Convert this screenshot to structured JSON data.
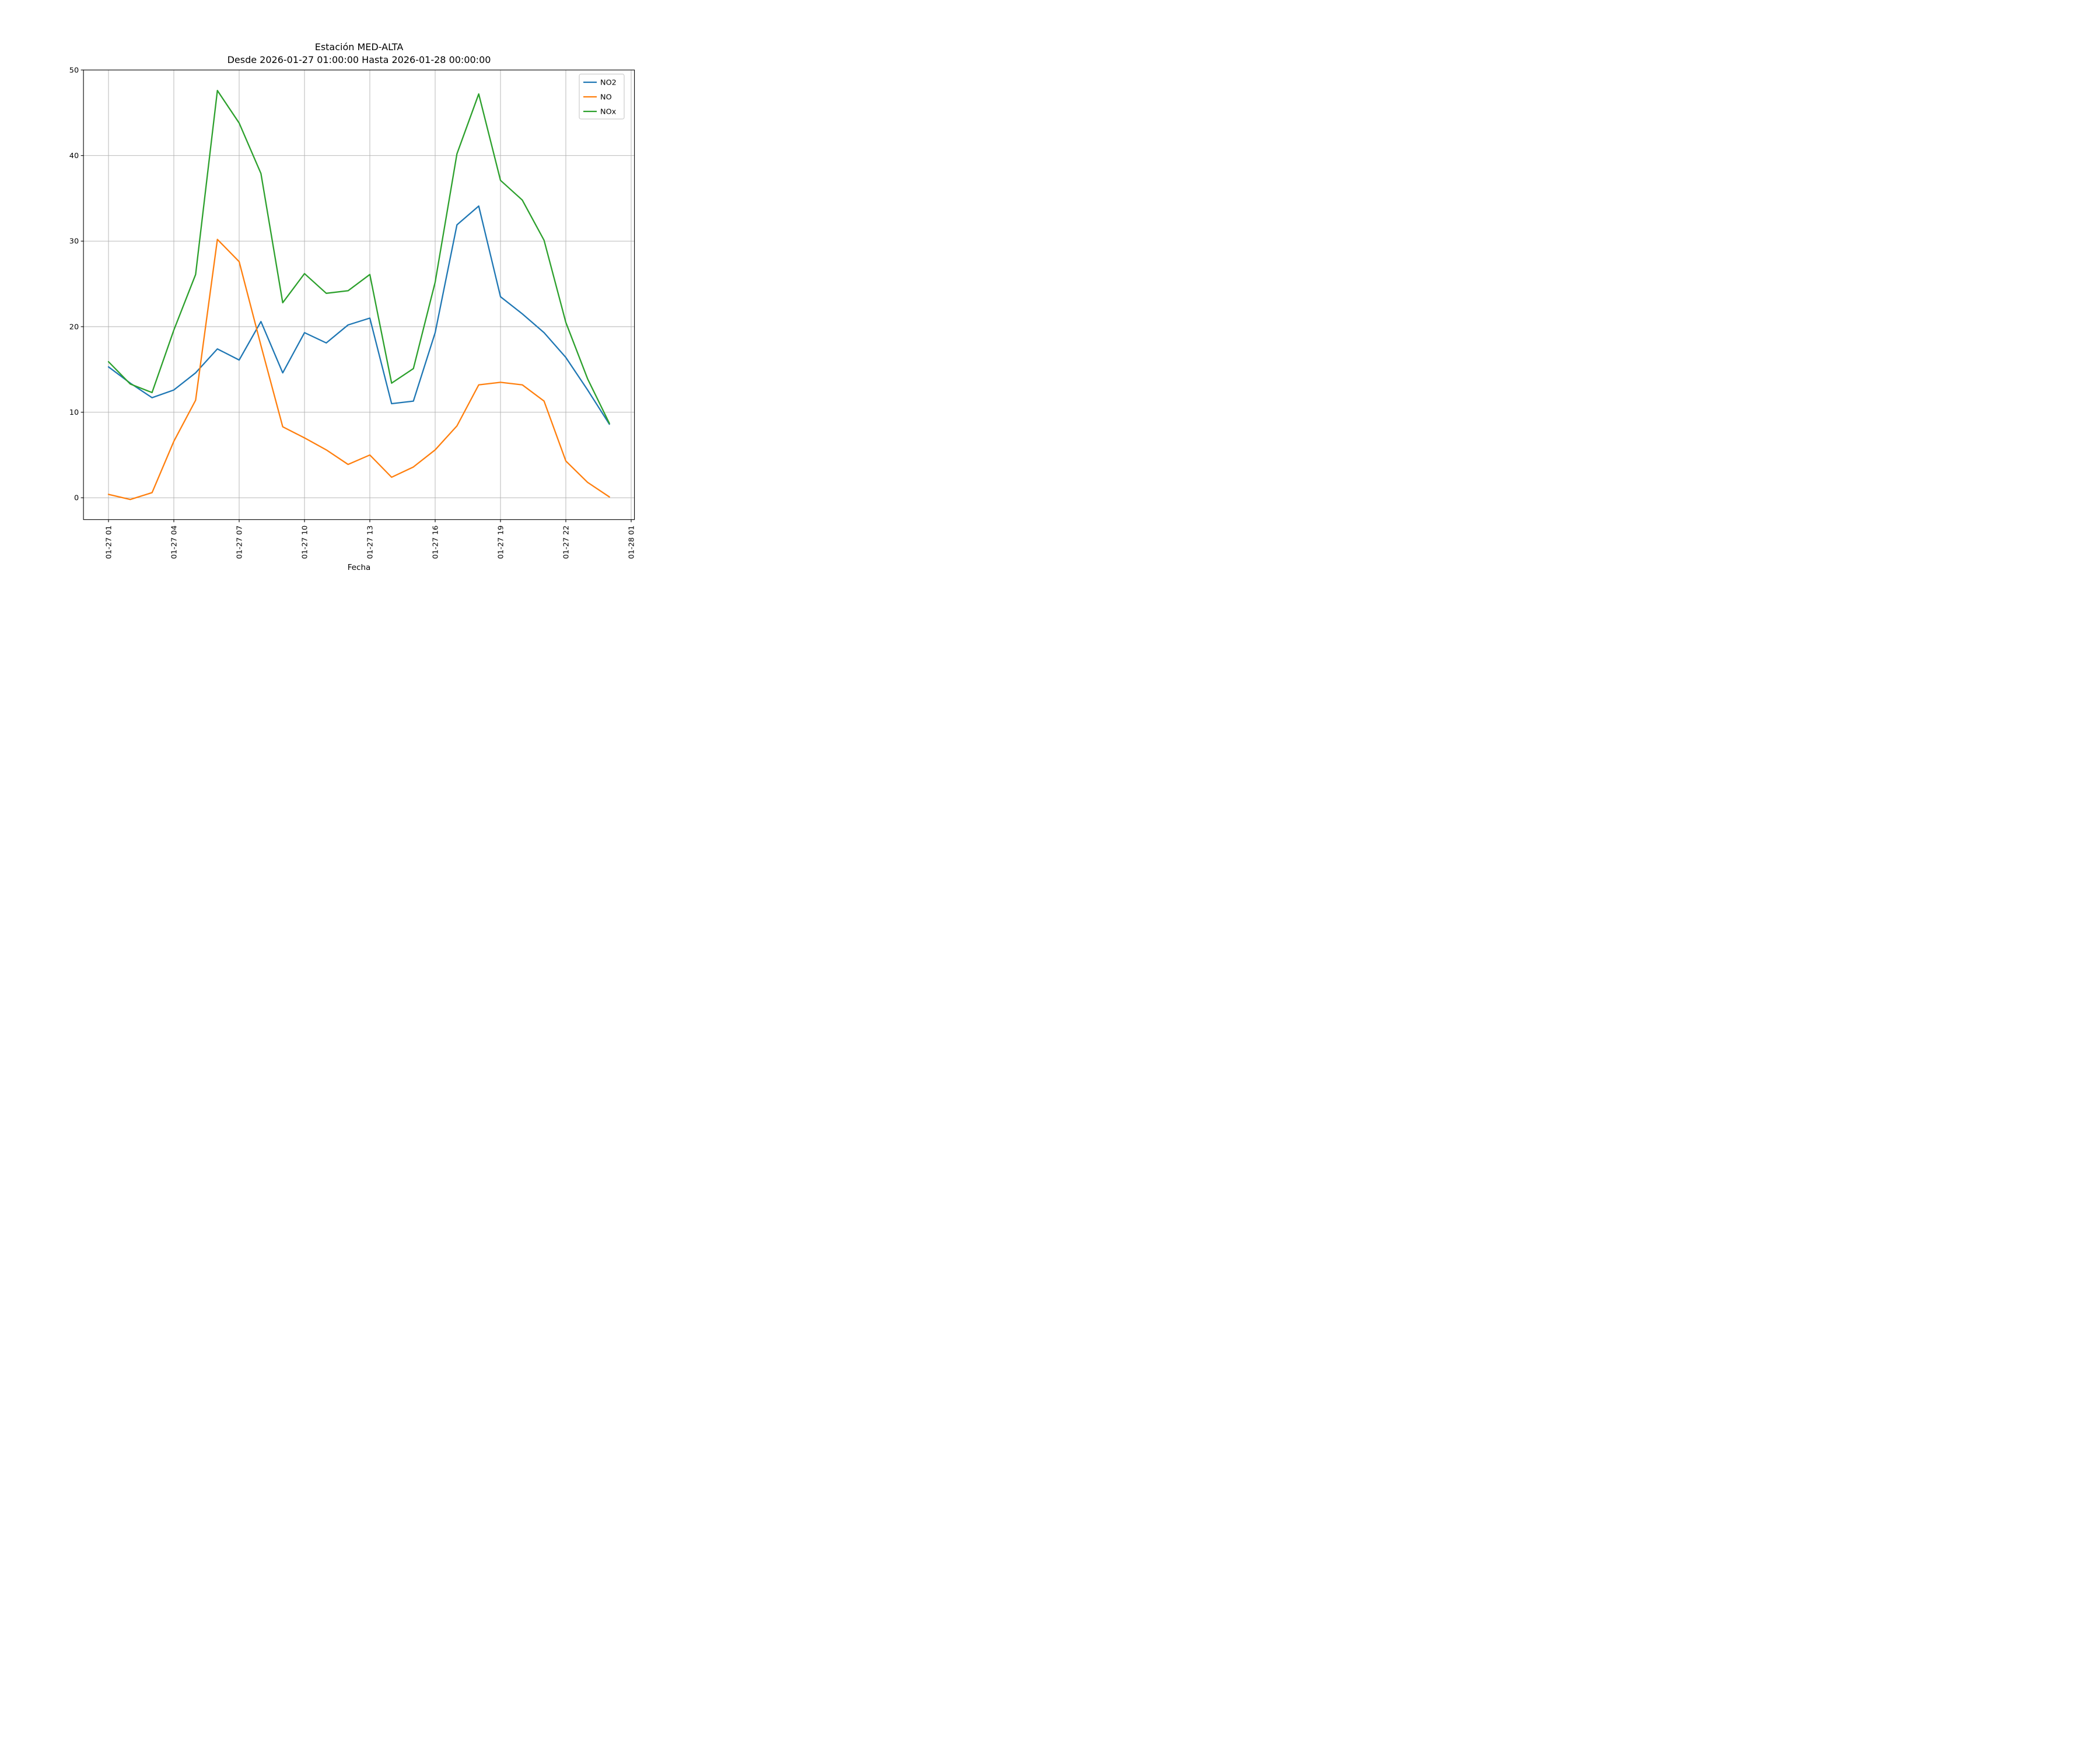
{
  "title": "Estación MED-ALTA",
  "subtitle": "Desde 2026-01-27 01:00:00 Hasta 2026-01-28 00:00:00",
  "xlabel": "Fecha",
  "chart_data": {
    "type": "line",
    "title": "Estación MED-ALTA",
    "subtitle": "Desde 2026-01-27 01:00:00 Hasta 2026-01-28 00:00:00",
    "xlabel": "Fecha",
    "ylabel": "",
    "grid": true,
    "grid_color": "#b0b0b0",
    "background": "#ffffff",
    "legend_position": "upper right",
    "ylim": [
      -2.55,
      50
    ],
    "xlim_hours": [
      -0.15,
      25.15
    ],
    "y_ticks": [
      0,
      10,
      20,
      30,
      40,
      50
    ],
    "x_tick_hours": [
      1,
      4,
      7,
      10,
      13,
      16,
      19,
      22,
      25
    ],
    "x_tick_labels": [
      "01-27 01",
      "01-27 04",
      "01-27 07",
      "01-27 10",
      "01-27 13",
      "01-27 16",
      "01-27 19",
      "01-27 22",
      "01-28 01"
    ],
    "hours": [
      1,
      2,
      3,
      4,
      5,
      6,
      7,
      8,
      9,
      10,
      11,
      12,
      13,
      14,
      15,
      16,
      17,
      18,
      19,
      20,
      21,
      22,
      23,
      24
    ],
    "series": [
      {
        "name": "NO2",
        "color": "#1f77b4",
        "values": [
          15.3,
          13.4,
          11.7,
          12.6,
          14.6,
          17.4,
          16.1,
          20.6,
          14.6,
          19.3,
          18.1,
          20.2,
          21.0,
          11.0,
          11.3,
          19.3,
          31.9,
          34.1,
          23.5,
          21.5,
          19.3,
          16.4,
          12.6,
          8.6
        ]
      },
      {
        "name": "NO",
        "color": "#ff7f0e",
        "values": [
          0.4,
          -0.2,
          0.6,
          6.6,
          11.4,
          30.2,
          27.6,
          17.8,
          8.3,
          7.0,
          5.6,
          3.9,
          5.0,
          2.4,
          3.6,
          5.6,
          8.4,
          13.2,
          13.5,
          13.2,
          11.3,
          4.3,
          1.8,
          0.1
        ]
      },
      {
        "name": "NOx",
        "color": "#2ca02c",
        "values": [
          15.9,
          13.3,
          12.3,
          19.6,
          26.1,
          47.6,
          43.8,
          37.9,
          22.8,
          26.2,
          23.9,
          24.2,
          26.1,
          13.4,
          15.1,
          25.2,
          40.2,
          47.2,
          37.1,
          34.8,
          30.1,
          20.5,
          13.9,
          8.7
        ]
      }
    ]
  }
}
